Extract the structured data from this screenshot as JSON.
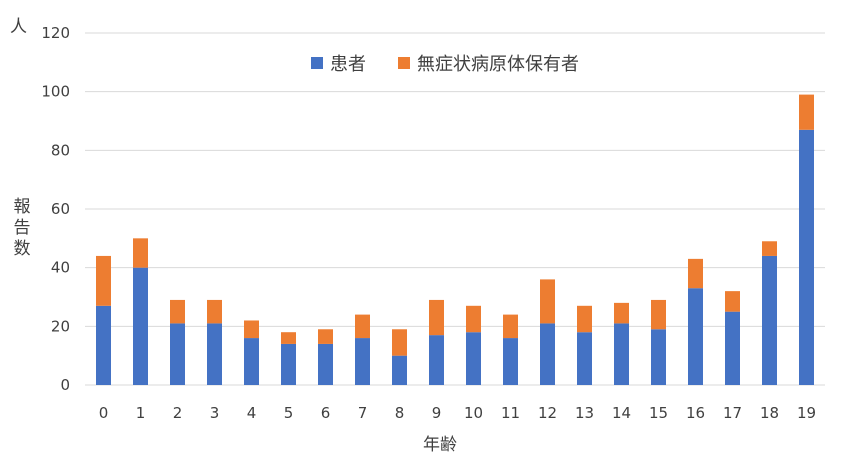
{
  "chart_data": {
    "type": "bar",
    "stacked": true,
    "title": "",
    "xlabel": "年齢",
    "ylabel": "報告数",
    "yunit": "人",
    "ylim": [
      0,
      120
    ],
    "yticks": [
      0,
      20,
      40,
      60,
      80,
      100,
      120
    ],
    "grid": true,
    "legend_position": "top",
    "categories": [
      "0",
      "1",
      "2",
      "3",
      "4",
      "5",
      "6",
      "7",
      "8",
      "9",
      "10",
      "11",
      "12",
      "13",
      "14",
      "15",
      "16",
      "17",
      "18",
      "19"
    ],
    "series": [
      {
        "name": "患者",
        "color": "#4472C4",
        "values": [
          27,
          40,
          21,
          21,
          16,
          14,
          14,
          16,
          10,
          17,
          18,
          16,
          21,
          18,
          21,
          19,
          33,
          25,
          44,
          87
        ]
      },
      {
        "name": "無症状病原体保有者",
        "color": "#ED7D31",
        "values": [
          17,
          10,
          8,
          8,
          6,
          4,
          5,
          8,
          9,
          12,
          9,
          8,
          15,
          9,
          7,
          10,
          10,
          7,
          5,
          12
        ]
      }
    ]
  }
}
